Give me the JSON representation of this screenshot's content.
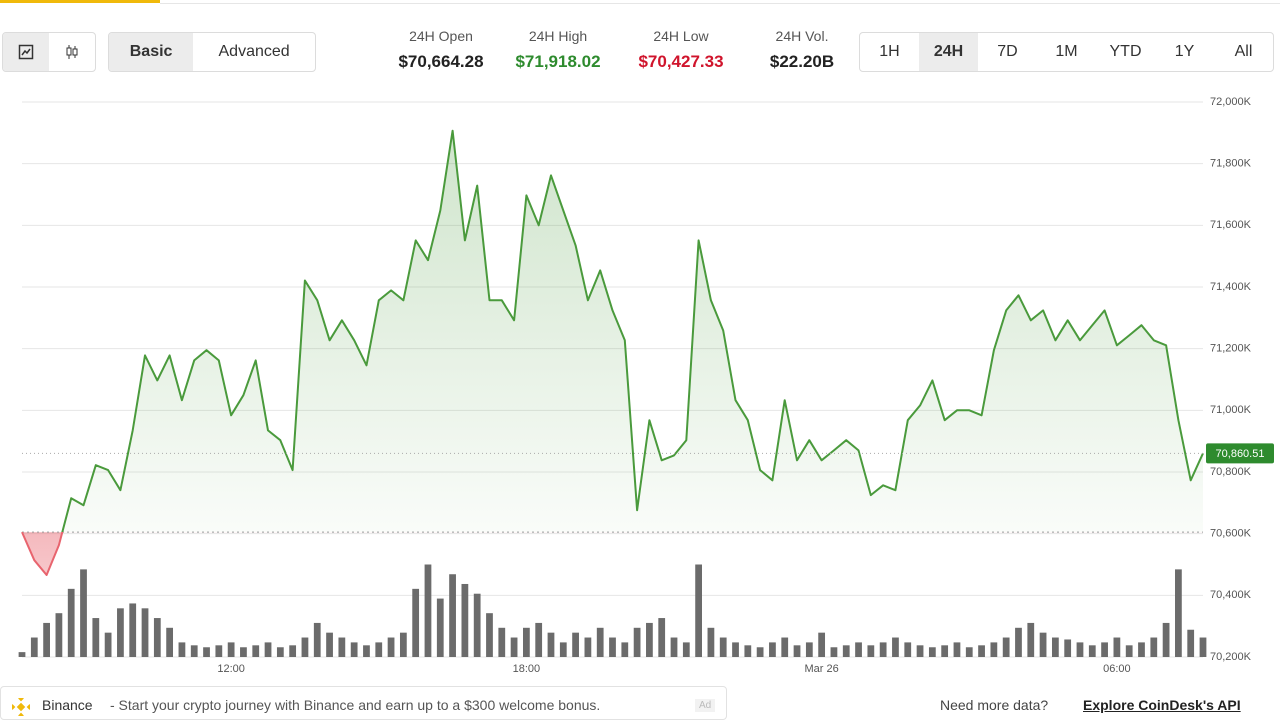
{
  "toolbar": {
    "modes": [
      "Basic",
      "Advanced"
    ],
    "active_mode": 0,
    "stats": [
      {
        "label": "24H Open",
        "value": "$70,664.28",
        "color": "#222222"
      },
      {
        "label": "24H High",
        "value": "$71,918.02",
        "color": "#2e8b2e"
      },
      {
        "label": "24H Low",
        "value": "$70,427.33",
        "color": "#d0142c"
      },
      {
        "label": "24H Vol.",
        "value": "$22.20B",
        "color": "#222222"
      }
    ],
    "ranges": [
      "1H",
      "24H",
      "7D",
      "1M",
      "YTD",
      "1Y",
      "All"
    ],
    "active_range": 1
  },
  "chart_data": {
    "type": "line",
    "categories": [
      null,
      null,
      null,
      null,
      null,
      null,
      null,
      null,
      null,
      null,
      null,
      null,
      null,
      null,
      null,
      null,
      null,
      "12:00",
      null,
      null,
      null,
      null,
      null,
      null,
      null,
      null,
      null,
      null,
      null,
      null,
      null,
      null,
      null,
      null,
      null,
      null,
      null,
      null,
      null,
      null,
      null,
      "18:00",
      null,
      null,
      null,
      null,
      null,
      null,
      null,
      null,
      null,
      null,
      null,
      null,
      null,
      null,
      null,
      null,
      null,
      null,
      null,
      null,
      null,
      null,
      null,
      "Mar 26",
      null,
      null,
      null,
      null,
      null,
      null,
      null,
      null,
      null,
      null,
      null,
      null,
      null,
      null,
      null,
      null,
      null,
      null,
      null,
      null,
      null,
      null,
      null,
      "06:00",
      null,
      null,
      null,
      null,
      null,
      null,
      null
    ],
    "series": [
      {
        "color": "#4a9a3c",
        "below_color": "#e8646e",
        "values": [
          70605,
          70514,
          70466,
          70563,
          70715,
          70692,
          70822,
          70806,
          70741,
          70935,
          71178,
          71097,
          71178,
          71033,
          71162,
          71195,
          71162,
          70984,
          71049,
          71162,
          70935,
          70903,
          70806,
          71421,
          71357,
          71227,
          71292,
          71227,
          71146,
          71357,
          71389,
          71357,
          71551,
          71487,
          71648,
          71907,
          71551,
          71729,
          71357,
          71357,
          71292,
          71697,
          71600,
          71762,
          71648,
          71535,
          71357,
          71454,
          71324,
          71227,
          70676,
          70968,
          70838,
          70854,
          70903,
          71551,
          71357,
          71259,
          71033,
          70968,
          70806,
          70773,
          71033,
          70838,
          70903,
          70838,
          70870,
          70903,
          70870,
          70725,
          70757,
          70741,
          70968,
          71016,
          71097,
          70968,
          71000,
          71000,
          70984,
          71195,
          71324,
          71373,
          71292,
          71324,
          71227,
          71292,
          71227,
          71276,
          71324,
          71211,
          71243,
          71276,
          71227,
          71211,
          70968,
          70773,
          70860.51
        ]
      },
      {
        "type": "bar",
        "axis": "y2",
        "color": "#6b6b6b",
        "values": [
          5,
          20,
          35,
          45,
          70,
          90,
          40,
          25,
          50,
          55,
          50,
          40,
          30,
          15,
          12,
          10,
          12,
          15,
          10,
          12,
          15,
          10,
          12,
          20,
          35,
          25,
          20,
          15,
          12,
          15,
          20,
          25,
          70,
          95,
          60,
          85,
          75,
          65,
          45,
          30,
          20,
          30,
          35,
          25,
          15,
          25,
          20,
          30,
          20,
          15,
          30,
          35,
          40,
          20,
          15,
          95,
          30,
          20,
          15,
          12,
          10,
          15,
          20,
          12,
          15,
          25,
          10,
          12,
          15,
          12,
          15,
          20,
          15,
          12,
          10,
          12,
          15,
          10,
          12,
          15,
          20,
          30,
          35,
          25,
          20,
          18,
          15,
          12,
          15,
          20,
          12,
          15,
          20,
          35,
          90,
          28,
          20
        ]
      }
    ],
    "baseline": 70605,
    "last": {
      "value": 70860.51,
      "label": "70,860.51"
    },
    "last_color": "#2e8b2e",
    "ylim": [
      70200,
      72000
    ],
    "yticks": [
      {
        "value": 70200,
        "label": "70,200K"
      },
      {
        "value": 70400,
        "label": "70,400K"
      },
      {
        "value": 70600,
        "label": "70,600K"
      },
      {
        "value": 70800,
        "label": "70,800K"
      },
      {
        "value": 71000,
        "label": "71,000K"
      },
      {
        "value": 71200,
        "label": "71,200K"
      },
      {
        "value": 71400,
        "label": "71,400K"
      },
      {
        "value": 71600,
        "label": "71,600K"
      },
      {
        "value": 71800,
        "label": "71,800K"
      },
      {
        "value": 72000,
        "label": "72,000K"
      }
    ],
    "y2lim": [
      0,
      570
    ],
    "grid": true
  },
  "footer": {
    "ad_brand": "Binance",
    "ad_text": "- Start your crypto journey with Binance and earn up to a $300 welcome bonus.",
    "ad_badge": "Ad",
    "prompt": "Need more data?",
    "link": "Explore CoinDesk's API"
  }
}
